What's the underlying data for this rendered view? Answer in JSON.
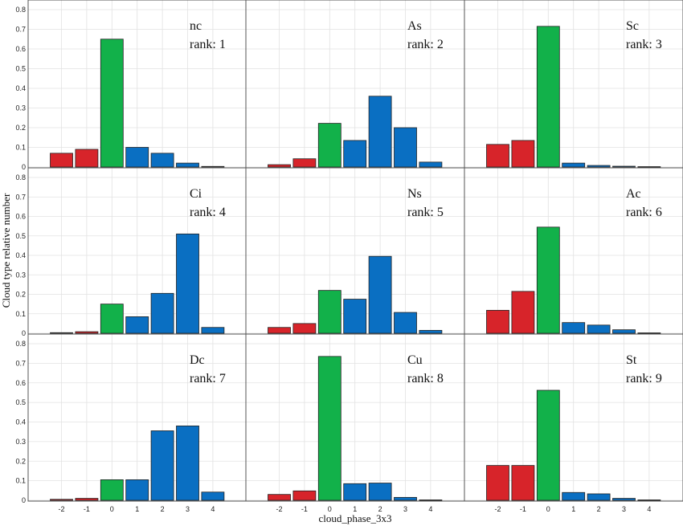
{
  "figure": {
    "xlabel": "cloud_phase_3x3",
    "ylabel": "Cloud type relative number",
    "colors": {
      "negative": "#d7242a",
      "zero": "#12b14a",
      "positive": "#0a6fc2"
    }
  },
  "chart_data": [
    {
      "type": "bar",
      "name": "nc",
      "rank_label": "rank: 1",
      "categories": [
        "-2",
        "-1",
        "0",
        "1",
        "2",
        "3",
        "4"
      ],
      "values": [
        0.07,
        0.09,
        0.65,
        0.1,
        0.07,
        0.02,
        0.003
      ],
      "ylim": [
        0,
        0.8
      ]
    },
    {
      "type": "bar",
      "name": "As",
      "rank_label": "rank: 2",
      "categories": [
        "-2",
        "-1",
        "0",
        "1",
        "2",
        "3",
        "4"
      ],
      "values": [
        0.012,
        0.042,
        0.222,
        0.135,
        0.36,
        0.2,
        0.025
      ],
      "ylim": [
        0,
        0.8
      ]
    },
    {
      "type": "bar",
      "name": "Sc",
      "rank_label": "rank: 3",
      "categories": [
        "-2",
        "-1",
        "0",
        "1",
        "2",
        "3",
        "4"
      ],
      "values": [
        0.115,
        0.135,
        0.715,
        0.02,
        0.008,
        0.004,
        0.002
      ],
      "ylim": [
        0,
        0.8
      ]
    },
    {
      "type": "bar",
      "name": "Ci",
      "rank_label": "rank: 4",
      "categories": [
        "-2",
        "-1",
        "0",
        "1",
        "2",
        "3",
        "4"
      ],
      "values": [
        0.003,
        0.008,
        0.15,
        0.085,
        0.205,
        0.51,
        0.03
      ],
      "ylim": [
        0,
        0.8
      ]
    },
    {
      "type": "bar",
      "name": "Ns",
      "rank_label": "rank: 5",
      "categories": [
        "-2",
        "-1",
        "0",
        "1",
        "2",
        "3",
        "4"
      ],
      "values": [
        0.03,
        0.05,
        0.22,
        0.175,
        0.395,
        0.107,
        0.015
      ],
      "ylim": [
        0,
        0.8
      ]
    },
    {
      "type": "bar",
      "name": "Ac",
      "rank_label": "rank: 6",
      "categories": [
        "-2",
        "-1",
        "0",
        "1",
        "2",
        "3",
        "4"
      ],
      "values": [
        0.118,
        0.215,
        0.545,
        0.055,
        0.042,
        0.018,
        0.002
      ],
      "ylim": [
        0,
        0.8
      ]
    },
    {
      "type": "bar",
      "name": "Dc",
      "rank_label": "rank: 7",
      "categories": [
        "-2",
        "-1",
        "0",
        "1",
        "2",
        "3",
        "4"
      ],
      "values": [
        0.005,
        0.01,
        0.105,
        0.105,
        0.355,
        0.38,
        0.042
      ],
      "ylim": [
        0,
        0.8
      ]
    },
    {
      "type": "bar",
      "name": "Cu",
      "rank_label": "rank: 8",
      "categories": [
        "-2",
        "-1",
        "0",
        "1",
        "2",
        "3",
        "4"
      ],
      "values": [
        0.03,
        0.048,
        0.735,
        0.085,
        0.088,
        0.015,
        0.002
      ],
      "ylim": [
        0,
        0.8
      ]
    },
    {
      "type": "bar",
      "name": "St",
      "rank_label": "rank: 9",
      "categories": [
        "-2",
        "-1",
        "0",
        "1",
        "2",
        "3",
        "4"
      ],
      "values": [
        0.178,
        0.178,
        0.562,
        0.04,
        0.033,
        0.01,
        0.002
      ],
      "ylim": [
        0,
        0.8
      ]
    }
  ],
  "y_ticks": [
    0,
    0.1,
    0.2,
    0.3,
    0.4,
    0.5,
    0.6,
    0.7,
    0.8
  ],
  "y_tick_labels": [
    "0",
    "0.1",
    "0.2",
    "0.3",
    "0.4",
    "0.5",
    "0.6",
    "0.7",
    "0.8"
  ],
  "x_tick_labels": [
    "-2",
    "-1",
    "0",
    "1",
    "2",
    "3",
    "4"
  ]
}
